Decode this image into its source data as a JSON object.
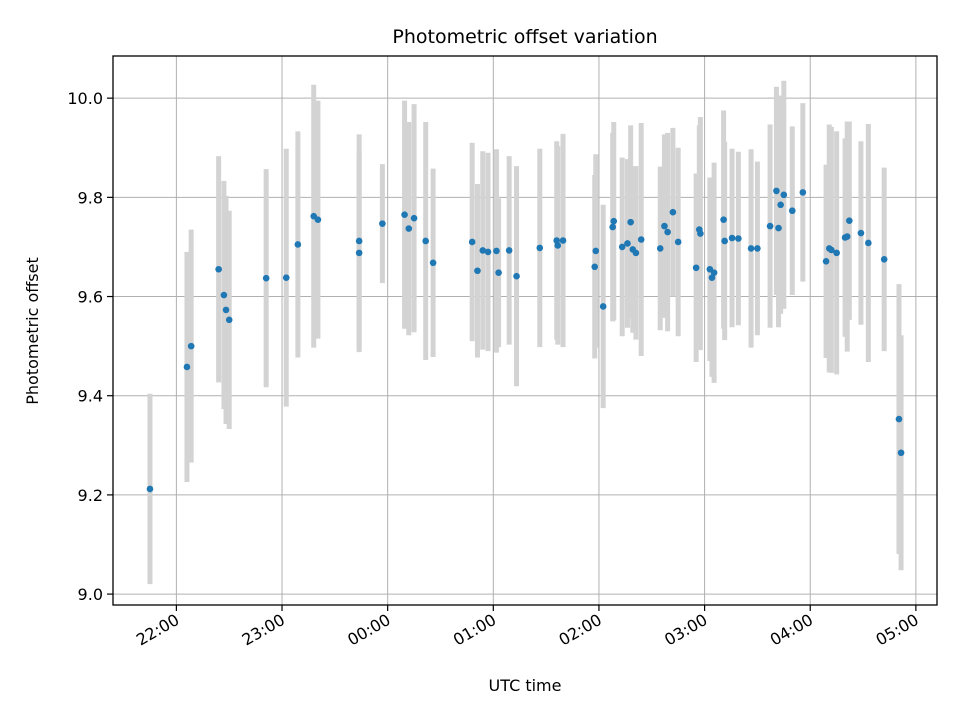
{
  "chart_data": {
    "type": "scatter",
    "title": "Photometric offset variation",
    "xlabel": "UTC time",
    "ylabel": "Photometric offset",
    "x_axis_kind": "time",
    "x_tick_labels": [
      "22:00",
      "23:00",
      "00:00",
      "01:00",
      "02:00",
      "03:00",
      "04:00",
      "05:00"
    ],
    "y_tick_labels": [
      "9.0",
      "9.2",
      "9.4",
      "9.6",
      "9.8",
      "10.0"
    ],
    "grid": true,
    "colors": {
      "points": "#1f77b4",
      "error_bars": "#d3d3d3",
      "grid": "#b0b0b0"
    },
    "x_unit": "UTC hour (hours after 00:00; negative = previous day)",
    "points": [
      {
        "x": -2.25,
        "y": 9.212,
        "err": 0.192
      },
      {
        "x": -1.9,
        "y": 9.458,
        "err": 0.232
      },
      {
        "x": -1.86,
        "y": 9.5,
        "err": 0.235
      },
      {
        "x": -1.6,
        "y": 9.655,
        "err": 0.228
      },
      {
        "x": -1.55,
        "y": 9.603,
        "err": 0.23
      },
      {
        "x": -1.53,
        "y": 9.573,
        "err": 0.23
      },
      {
        "x": -1.5,
        "y": 9.553,
        "err": 0.22
      },
      {
        "x": -1.15,
        "y": 9.637,
        "err": 0.22
      },
      {
        "x": -0.96,
        "y": 9.638,
        "err": 0.26
      },
      {
        "x": -0.85,
        "y": 9.705,
        "err": 0.228
      },
      {
        "x": -0.7,
        "y": 9.762,
        "err": 0.265
      },
      {
        "x": -0.66,
        "y": 9.755,
        "err": 0.24
      },
      {
        "x": -0.27,
        "y": 9.712,
        "err": 0.215
      },
      {
        "x": -0.27,
        "y": 9.688,
        "err": 0.2
      },
      {
        "x": -0.05,
        "y": 9.747,
        "err": 0.12
      },
      {
        "x": 0.16,
        "y": 9.765,
        "err": 0.23
      },
      {
        "x": 0.2,
        "y": 9.737,
        "err": 0.215
      },
      {
        "x": 0.25,
        "y": 9.758,
        "err": 0.23
      },
      {
        "x": 0.36,
        "y": 9.712,
        "err": 0.24
      },
      {
        "x": 0.43,
        "y": 9.668,
        "err": 0.19
      },
      {
        "x": 0.8,
        "y": 9.71,
        "err": 0.2
      },
      {
        "x": 0.85,
        "y": 9.652,
        "err": 0.175
      },
      {
        "x": 0.9,
        "y": 9.693,
        "err": 0.2
      },
      {
        "x": 0.95,
        "y": 9.69,
        "err": 0.2
      },
      {
        "x": 1.03,
        "y": 9.692,
        "err": 0.205
      },
      {
        "x": 1.05,
        "y": 9.648,
        "err": 0.15
      },
      {
        "x": 1.15,
        "y": 9.693,
        "err": 0.19
      },
      {
        "x": 1.22,
        "y": 9.641,
        "err": 0.222
      },
      {
        "x": 1.44,
        "y": 9.698,
        "err": 0.2
      },
      {
        "x": 1.6,
        "y": 9.713,
        "err": 0.2
      },
      {
        "x": 1.61,
        "y": 9.703,
        "err": 0.2
      },
      {
        "x": 1.66,
        "y": 9.713,
        "err": 0.215
      },
      {
        "x": 1.96,
        "y": 9.66,
        "err": 0.185
      },
      {
        "x": 1.97,
        "y": 9.692,
        "err": 0.195
      },
      {
        "x": 2.04,
        "y": 9.58,
        "err": 0.205
      },
      {
        "x": 2.13,
        "y": 9.74,
        "err": 0.19
      },
      {
        "x": 2.14,
        "y": 9.752,
        "err": 0.2
      },
      {
        "x": 2.22,
        "y": 9.7,
        "err": 0.18
      },
      {
        "x": 2.27,
        "y": 9.707,
        "err": 0.17
      },
      {
        "x": 2.3,
        "y": 9.75,
        "err": 0.195
      },
      {
        "x": 2.32,
        "y": 9.695,
        "err": 0.168
      },
      {
        "x": 2.35,
        "y": 9.688,
        "err": 0.175
      },
      {
        "x": 2.4,
        "y": 9.715,
        "err": 0.235
      },
      {
        "x": 2.58,
        "y": 9.697,
        "err": 0.165
      },
      {
        "x": 2.62,
        "y": 9.742,
        "err": 0.185
      },
      {
        "x": 2.65,
        "y": 9.73,
        "err": 0.2
      },
      {
        "x": 2.7,
        "y": 9.77,
        "err": 0.17
      },
      {
        "x": 2.75,
        "y": 9.71,
        "err": 0.19
      },
      {
        "x": 2.92,
        "y": 9.658,
        "err": 0.19
      },
      {
        "x": 2.95,
        "y": 9.735,
        "err": 0.21
      },
      {
        "x": 2.96,
        "y": 9.727,
        "err": 0.235
      },
      {
        "x": 3.05,
        "y": 9.655,
        "err": 0.185
      },
      {
        "x": 3.07,
        "y": 9.638,
        "err": 0.2
      },
      {
        "x": 3.09,
        "y": 9.648,
        "err": 0.222
      },
      {
        "x": 3.18,
        "y": 9.755,
        "err": 0.22
      },
      {
        "x": 3.19,
        "y": 9.712,
        "err": 0.2
      },
      {
        "x": 3.26,
        "y": 9.718,
        "err": 0.18
      },
      {
        "x": 3.32,
        "y": 9.717,
        "err": 0.175
      },
      {
        "x": 3.44,
        "y": 9.697,
        "err": 0.2
      },
      {
        "x": 3.5,
        "y": 9.697,
        "err": 0.175
      },
      {
        "x": 3.62,
        "y": 9.742,
        "err": 0.205
      },
      {
        "x": 3.68,
        "y": 9.813,
        "err": 0.21
      },
      {
        "x": 3.7,
        "y": 9.738,
        "err": 0.2
      },
      {
        "x": 3.72,
        "y": 9.785,
        "err": 0.22
      },
      {
        "x": 3.75,
        "y": 9.805,
        "err": 0.23
      },
      {
        "x": 3.83,
        "y": 9.773,
        "err": 0.17
      },
      {
        "x": 3.93,
        "y": 9.81,
        "err": 0.18
      },
      {
        "x": 4.15,
        "y": 9.671,
        "err": 0.195
      },
      {
        "x": 4.18,
        "y": 9.697,
        "err": 0.25
      },
      {
        "x": 4.2,
        "y": 9.694,
        "err": 0.248
      },
      {
        "x": 4.25,
        "y": 9.688,
        "err": 0.245
      },
      {
        "x": 4.33,
        "y": 9.719,
        "err": 0.2
      },
      {
        "x": 4.35,
        "y": 9.721,
        "err": 0.232
      },
      {
        "x": 4.37,
        "y": 9.753,
        "err": 0.2
      },
      {
        "x": 4.48,
        "y": 9.728,
        "err": 0.185
      },
      {
        "x": 4.55,
        "y": 9.708,
        "err": 0.24
      },
      {
        "x": 4.7,
        "y": 9.675,
        "err": 0.185
      },
      {
        "x": 4.84,
        "y": 9.353,
        "err": 0.272
      },
      {
        "x": 4.86,
        "y": 9.285,
        "err": 0.237
      }
    ]
  }
}
